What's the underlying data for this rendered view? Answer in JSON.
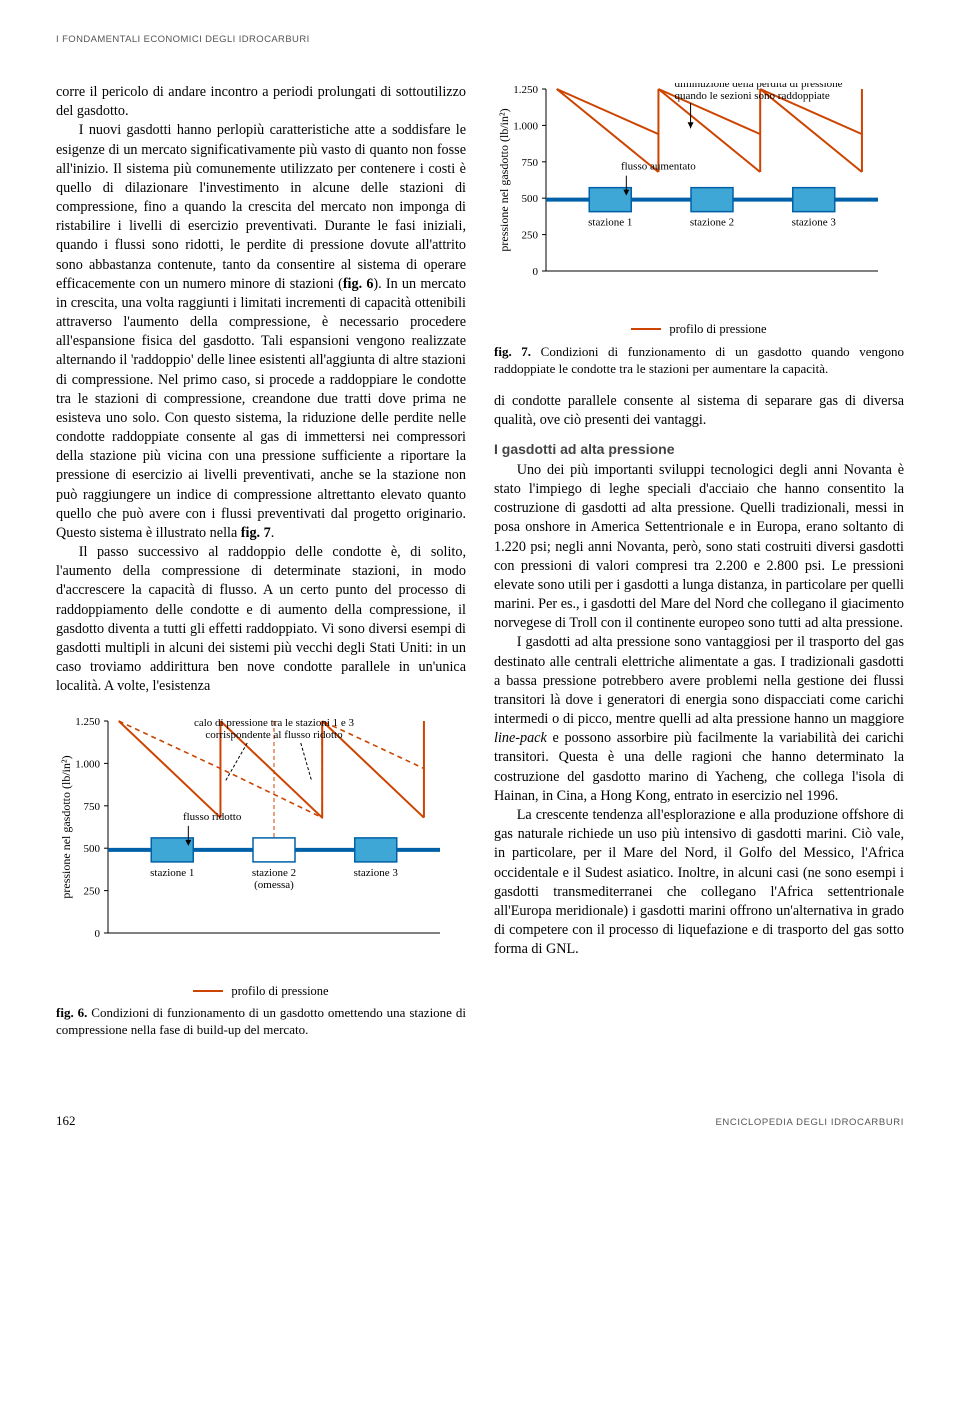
{
  "running_head": "I FONDAMENTALI ECONOMICI DEGLI IDROCARBURI",
  "left_col": {
    "para1": "corre il pericolo di andare incontro a periodi prolungati di sottoutilizzo del gasdotto.",
    "para2_a": "I nuovi gasdotti hanno perlopiù caratteristiche atte a soddisfare le esigenze di un mercato significativamente più vasto di quanto non fosse all'inizio. Il sistema più comunemente utilizzato per contenere i costi è quello di dilazionare l'investimento in alcune delle stazioni di compressione, fino a quando la crescita del mercato non imponga di ristabilire i livelli di esercizio preventivati. Durante le fasi iniziali, quando i flussi sono ridotti, le perdite di pressione dovute all'attrito sono abbastanza contenute, tanto da consentire al sistema di operare efficacemente con un numero minore di stazioni (",
    "fig6_ref": "fig. 6",
    "para2_b": "). In un mercato in crescita, una volta raggiunti i limitati incrementi di capacità ottenibili attraverso l'aumento della compressione, è necessario procedere all'espansione fisica del gasdotto. Tali espansioni vengono realizzate alternando il 'raddoppio' delle linee esistenti all'aggiunta di altre stazioni di compressione. Nel primo caso, si procede a raddoppiare le condotte tra le stazioni di compressione, creandone due tratti dove prima ne esisteva uno solo. Con questo sistema, la riduzione delle perdite nelle condotte raddoppiate consente al gas di immettersi nei compressori della stazione più vicina con una pressione sufficiente a riportare la pressione di esercizio ai livelli preventivati, anche se la stazione non può raggiungere un indice di compressione altrettanto elevato quanto quello che può avere con i flussi preventivati dal progetto originario. Questo sistema è illustrato nella ",
    "fig7_ref": "fig. 7",
    "para2_c": ".",
    "para3": "Il passo successivo al raddoppio delle condotte è, di solito, l'aumento della compressione di determinate stazioni, in modo d'accrescere la capacità di flusso. A un certo punto del processo di raddoppiamento delle condotte e di aumento della compressione, il gasdotto diventa a tutti gli effetti raddoppiato. Vi sono diversi esempi di gasdotti multipli in alcuni dei sistemi più vecchi degli Stati Uniti: in un caso troviamo addirittura ben nove condotte parallele in un'unica località. A volte, l'esistenza"
  },
  "right_col": {
    "fig7_cap_a": "fig. 7.",
    "fig7_cap_b": " Condizioni di funzionamento di un gasdotto quando vengono raddoppiate le condotte tra le stazioni per aumentare la capacità.",
    "para1": "di condotte parallele consente al sistema di separare gas di diversa qualità, ove ciò presenti dei vantaggi.",
    "sect_head": "I gasdotti ad alta pressione",
    "para2": "Uno dei più importanti sviluppi tecnologici degli anni Novanta è stato l'impiego di leghe speciali d'acciaio che hanno consentito la costruzione di gasdotti ad alta pressione. Quelli tradizionali, messi in posa onshore in America Settentrionale e in Europa, erano soltanto di 1.220 psi; negli anni Novanta, però, sono stati costruiti diversi gasdotti con pressioni di valori compresi tra 2.200 e 2.800 psi. Le pressioni elevate sono utili per i gasdotti a lunga distanza, in particolare per quelli marini. Per es., i gasdotti del Mare del Nord che collegano il giacimento norvegese di Troll con il continente europeo sono tutti ad alta pressione.",
    "para3_a": "I gasdotti ad alta pressione sono vantaggiosi per il trasporto del gas destinato alle centrali elettriche alimentate a gas. I tradizionali gasdotti a bassa pressione potrebbero avere problemi nella gestione dei flussi transitori là dove i generatori di energia sono dispacciati come carichi intermedi o di picco, mentre quelli ad alta pressione hanno un maggiore ",
    "linepack": "line-pack",
    "para3_b": " e possono assorbire più facilmente la variabilità dei carichi transitori. Questa è una delle ragioni che hanno determinato la costruzione del gasdotto marino di Yacheng, che collega l'isola di Hainan, in Cina, a Hong Kong, entrato in esercizio nel 1996.",
    "para4": "La crescente tendenza all'esplorazione e alla produzione offshore di gas naturale richiede un uso più intensivo di gasdotti marini. Ciò vale, in particolare, per il Mare del Nord, il Golfo del Messico, l'Africa occidentale e il Sudest asiatico. Inoltre, in alcuni casi (ne sono esempi i gasdotti transmediterranei che collegano l'Africa settentrionale all'Europa meridionale) i gasdotti marini offrono un'alternativa in grado di competere con il processo di liquefazione e di trasporto del gas sotto forma di GNL."
  },
  "fig6": {
    "type": "line",
    "ylabel": "pressione nel gasdotto (lb/in²)",
    "ylim": [
      0,
      1250
    ],
    "yticks": [
      0,
      250,
      500,
      750,
      1000,
      1250
    ],
    "ytick_labels": [
      "0",
      "250",
      "500",
      "750",
      "1.000",
      "1.250"
    ],
    "annot_top": "calo di pressione tra le stazioni 1 e 3 corrispondente al flusso ridotto",
    "annot_flow": "flusso ridotto",
    "stations": [
      "stazione 1",
      "stazione 2\n(omessa)",
      "stazione 3"
    ],
    "solid_segments": [
      [
        [
          50,
          1250
        ],
        [
          145,
          680
        ]
      ],
      [
        [
          145,
          1250
        ],
        [
          240,
          680
        ]
      ],
      [
        [
          240,
          1250
        ],
        [
          335,
          680
        ]
      ]
    ],
    "dashed_series": [
      [
        50,
        1250
      ],
      [
        145,
        970
      ],
      [
        240,
        680
      ],
      [
        240,
        1250
      ],
      [
        335,
        970
      ]
    ],
    "pipe_y": 490,
    "pipe_color": "#3fa7d6",
    "pipe_stroke": "#0060a8",
    "station_box_color": "#3fa7d6",
    "station_box_stroke": "#0060a8",
    "station_omit_fill": "#ffffff",
    "line_color": "#cc4400",
    "grid_color": "#bcbcbc",
    "axis_color": "#000000",
    "bg": "#ffffff",
    "label_fontsize": 12,
    "tick_fontsize": 11,
    "legend_label": "profilo di pressione"
  },
  "fig7": {
    "type": "line",
    "ylabel": "pressione nel gasdotto (lb/in²)",
    "ylim": [
      0,
      1250
    ],
    "yticks": [
      0,
      250,
      500,
      750,
      1000,
      1250
    ],
    "ytick_labels": [
      "0",
      "250",
      "500",
      "750",
      "1.000",
      "1.250"
    ],
    "annot_top": "diminuzione della perdita di pressione quando le sezioni sono raddoppiate",
    "annot_flow": "flusso aumentato",
    "stations": [
      "stazione 1",
      "stazione 2",
      "stazione 3"
    ],
    "solid_segments": [
      [
        [
          50,
          1250
        ],
        [
          145,
          680
        ]
      ],
      [
        [
          145,
          1250
        ],
        [
          240,
          680
        ]
      ],
      [
        [
          240,
          1250
        ],
        [
          335,
          680
        ]
      ]
    ],
    "short_segments": [
      [
        [
          50,
          1250
        ],
        [
          145,
          940
        ]
      ],
      [
        [
          145,
          1250
        ],
        [
          240,
          940
        ]
      ],
      [
        [
          240,
          1250
        ],
        [
          335,
          940
        ]
      ]
    ],
    "pipe_y": 490,
    "pipe_color": "#3fa7d6",
    "pipe_stroke": "#0060a8",
    "station_box_color": "#3fa7d6",
    "station_box_stroke": "#0060a8",
    "line_color": "#cc4400",
    "grid_color": "#bcbcbc",
    "axis_color": "#000000",
    "bg": "#ffffff",
    "label_fontsize": 12,
    "tick_fontsize": 11,
    "legend_label": "profilo di pressione"
  },
  "fig6_cap_a": "fig. 6.",
  "fig6_cap_b": " Condizioni di funzionamento di un gasdotto omettendo una stazione di compressione nella fase di build-up del mercato.",
  "footer": {
    "page": "162",
    "source": "ENCICLOPEDIA DEGLI IDROCARBURI"
  }
}
